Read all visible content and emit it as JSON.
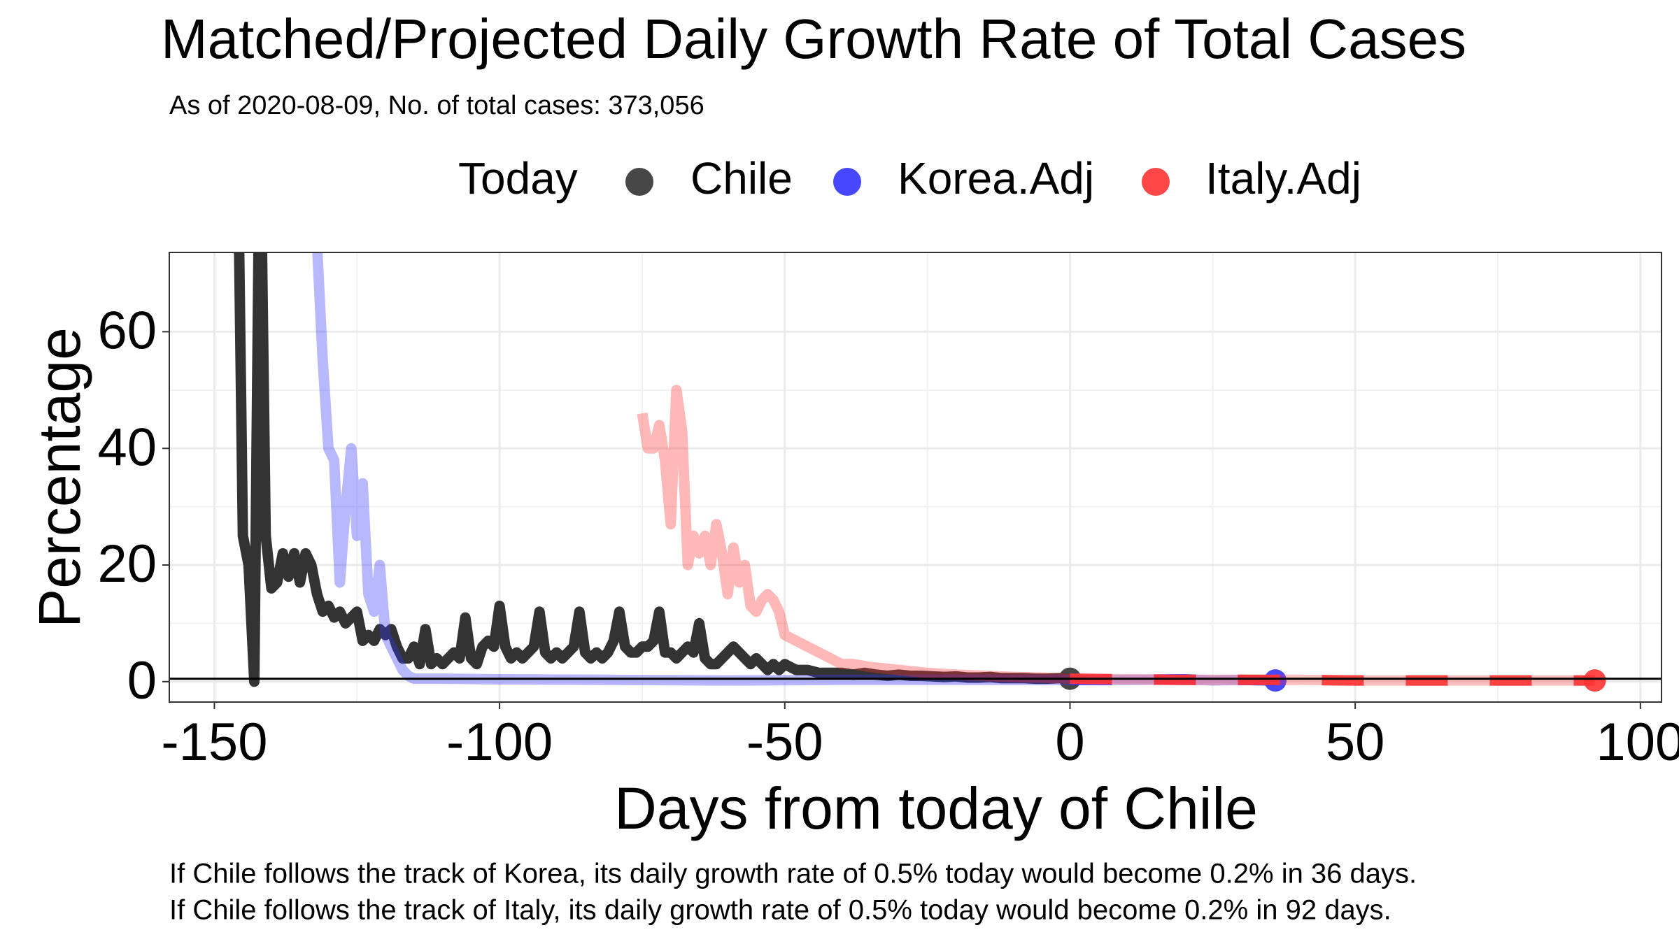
{
  "chart_data": {
    "type": "line",
    "title": "Matched/Projected Daily Growth Rate of Total Cases",
    "subtitle": "As of 2020-08-09, No. of total cases: 373,056",
    "x_label": "Days from today of Chile",
    "y_label": "Percentage",
    "legend_title": "Today",
    "annotations": [
      "If Chile follows the track of Korea, its daily growth rate of 0.5% today would become 0.2% in 36 days.",
      "If Chile follows the track of Italy, its daily growth rate of 0.5% today would become 0.2% in 92 days."
    ],
    "xlim": [
      -157.9,
      103.7
    ],
    "ylim": [
      -3.5,
      73.6
    ],
    "xticks": [
      -150,
      -100,
      -50,
      0,
      50,
      100
    ],
    "yticks": [
      0,
      20,
      40,
      60
    ],
    "grid": true,
    "legend_position": "top",
    "reference_line": 0.5,
    "series": [
      {
        "name": "Chile",
        "color": "#333333",
        "x": [
          -146,
          -145,
          -144,
          -143,
          -142,
          -141,
          -140,
          -139,
          -138,
          -137,
          -136,
          -135,
          -134,
          -133,
          -132,
          -131,
          -130,
          -129,
          -128,
          -127,
          -126,
          -125,
          -124,
          -123,
          -122,
          -121,
          -120,
          -119,
          -118,
          -117,
          -116,
          -115,
          -114,
          -113,
          -112,
          -111,
          -110,
          -109,
          -108,
          -107,
          -106,
          -105,
          -104,
          -103,
          -102,
          -101,
          -100,
          -99,
          -98,
          -97,
          -96,
          -95,
          -94,
          -93,
          -92,
          -91,
          -90,
          -89,
          -88,
          -87,
          -86,
          -85,
          -84,
          -83,
          -82,
          -81,
          -80,
          -79,
          -78,
          -77,
          -76,
          -75,
          -74,
          -73,
          -72,
          -71,
          -70,
          -69,
          -68,
          -67,
          -66,
          -65,
          -64,
          -63,
          -62,
          -61,
          -60,
          -59,
          -58,
          -57,
          -56,
          -55,
          -54,
          -53,
          -52,
          -51,
          -50,
          -48,
          -46,
          -44,
          -42,
          -40,
          -38,
          -36,
          -34,
          -32,
          -30,
          -28,
          -26,
          -24,
          -22,
          -20,
          -18,
          -16,
          -14,
          -12,
          -10,
          -8,
          -6,
          -4,
          -2,
          0
        ],
        "values": [
          100,
          25,
          20,
          0,
          100,
          25,
          16,
          17,
          22,
          18,
          22,
          17,
          22,
          20,
          15,
          12,
          13,
          11,
          12,
          10,
          11,
          12,
          7,
          8,
          7,
          9,
          8,
          9,
          6,
          4,
          4,
          6,
          3,
          9,
          3,
          4,
          3,
          4,
          5,
          4,
          11,
          4,
          3,
          6,
          7,
          6,
          13,
          6,
          4,
          5,
          4,
          5,
          6,
          12,
          5,
          4,
          5,
          4,
          5,
          6,
          12,
          5,
          4,
          5,
          4,
          5,
          7,
          12,
          6,
          5,
          5,
          6,
          6,
          7,
          12,
          5,
          5,
          4,
          5,
          6,
          5,
          10,
          4,
          3,
          3,
          4,
          5,
          6,
          5,
          4,
          3,
          4,
          3,
          2,
          3,
          2,
          3,
          2,
          2,
          1.5,
          1.5,
          1.5,
          1.2,
          1.5,
          1.2,
          1,
          1.2,
          1,
          1,
          0.9,
          0.8,
          0.9,
          0.7,
          0.7,
          0.8,
          0.6,
          0.6,
          0.6,
          0.5,
          0.5,
          0.6,
          0.5
        ]
      },
      {
        "name": "Korea.Adj",
        "color": "#3333ff",
        "x": [
          -132,
          -131,
          -130,
          -129,
          -128,
          -127,
          -126,
          -125,
          -124,
          -123,
          -122,
          -121,
          -120,
          -119,
          -118,
          -117,
          -116,
          -115,
          -110,
          -100,
          -80,
          -60,
          -40,
          -20,
          0,
          10,
          20,
          25,
          30,
          36
        ],
        "values": [
          75,
          55,
          40,
          38,
          17,
          30,
          40,
          25,
          34,
          15,
          12,
          20,
          8,
          6,
          4,
          2,
          1,
          0.5,
          0.5,
          0.4,
          0.3,
          0.2,
          0.3,
          0.3,
          0.3,
          0.3,
          0.4,
          0.2,
          0.3,
          0.2
        ]
      },
      {
        "name": "Italy.Adj",
        "color": "#ff3333",
        "x": [
          -75,
          -74,
          -73,
          -72,
          -71,
          -70,
          -69,
          -68,
          -67,
          -66,
          -65,
          -64,
          -63,
          -62,
          -61,
          -60,
          -59,
          -58,
          -57,
          -56,
          -55,
          -54,
          -53,
          -52,
          -51,
          -50,
          -48,
          -46,
          -44,
          -42,
          -40,
          -38,
          -35,
          -30,
          -25,
          -20,
          -15,
          -10,
          -5,
          0,
          10,
          20,
          30,
          40,
          50,
          60,
          70,
          80,
          92
        ],
        "values": [
          46,
          40,
          40,
          44,
          38,
          27,
          50,
          43,
          20,
          25,
          22,
          25,
          20,
          27,
          22,
          15,
          23,
          17,
          20,
          13,
          12,
          14,
          15,
          14,
          12,
          8,
          7,
          6,
          5,
          4,
          3,
          3,
          2.5,
          2,
          1.5,
          1.2,
          1,
          0.8,
          0.7,
          0.5,
          0.4,
          0.3,
          0.3,
          0.3,
          0.2,
          0.2,
          0.2,
          0.2,
          0.2
        ]
      }
    ]
  }
}
